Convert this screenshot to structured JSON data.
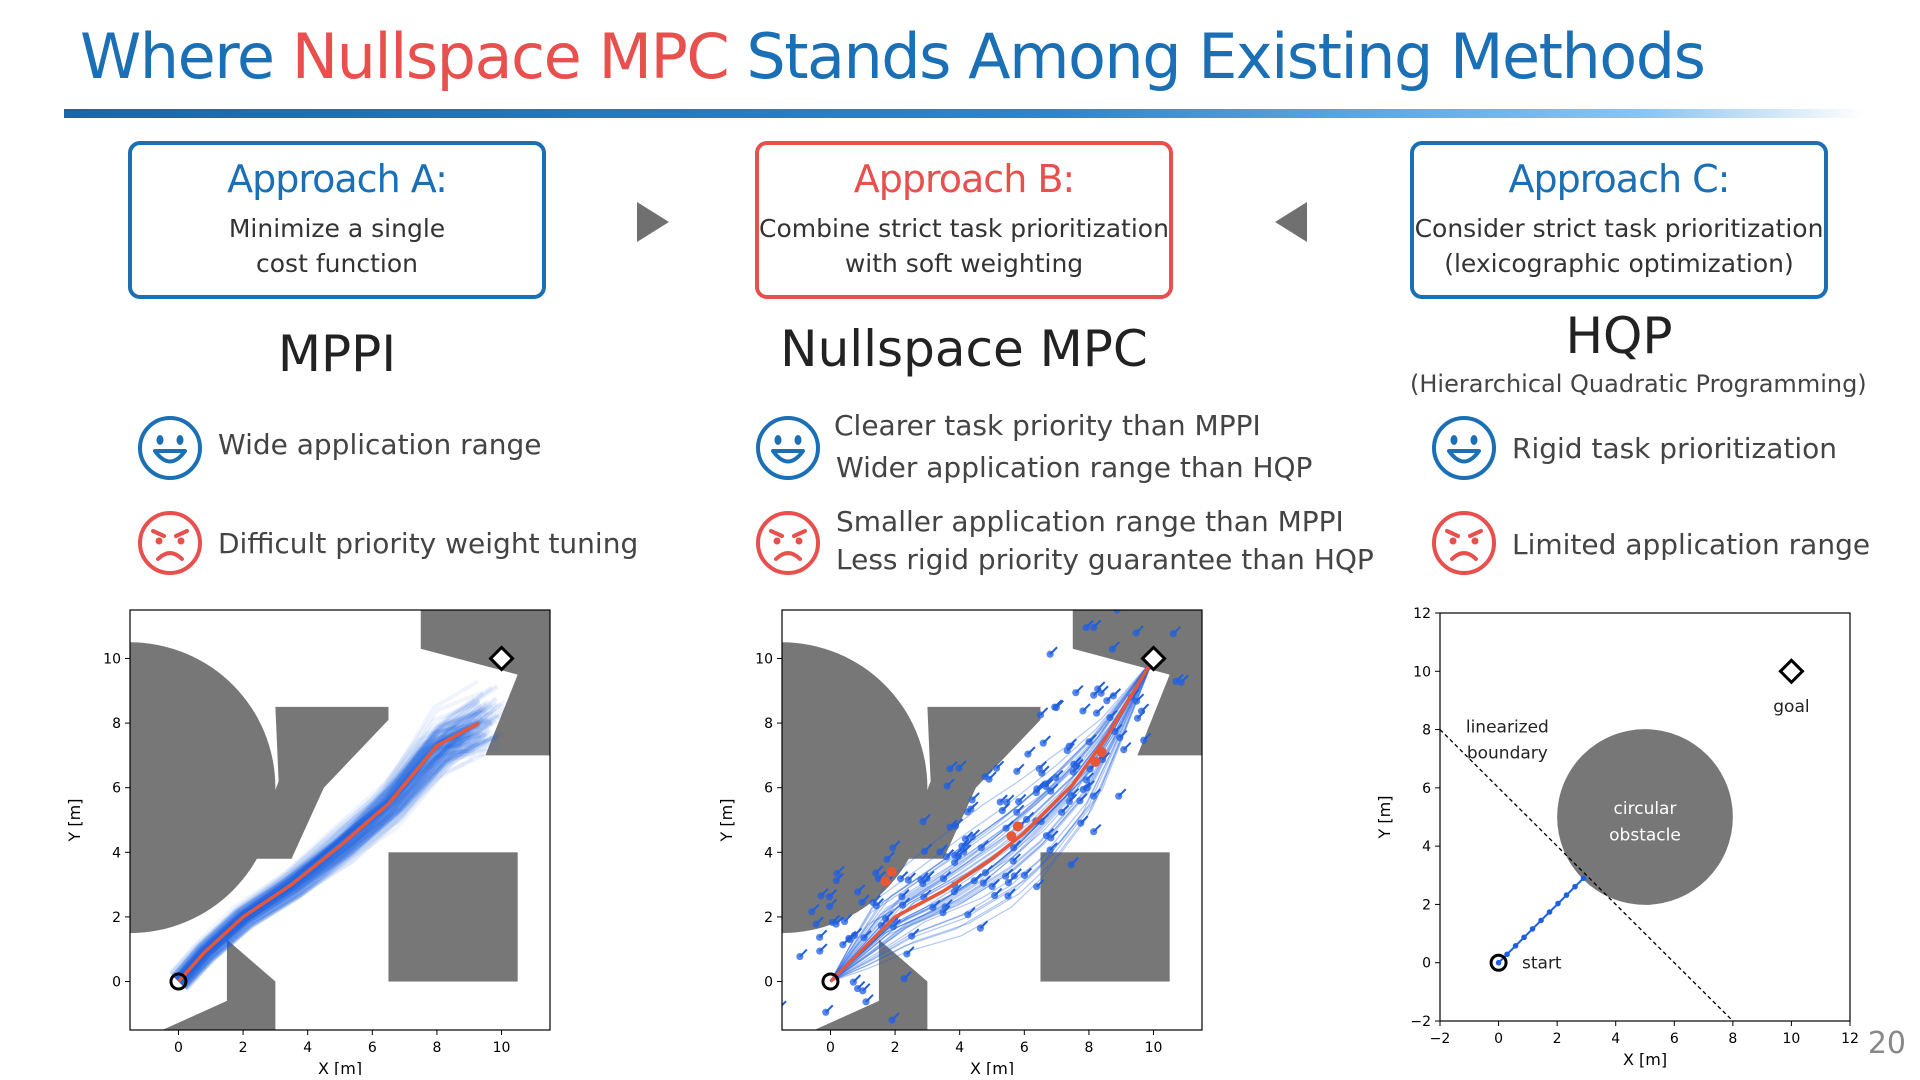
{
  "header": {
    "title_pre": "Where ",
    "title_highlight": "Nullspace MPC",
    "title_post": " Stands Among Existing Methods"
  },
  "colors": {
    "blue": "#1a6fb5",
    "red": "#e8504e",
    "obstacle": "#777777",
    "traj_blue": "#1f5fe0",
    "traj_red": "#e8563a"
  },
  "approaches": [
    {
      "heading": "Approach A:",
      "line1": "Minimize a single",
      "line2": "cost function",
      "method": "MPPI",
      "method_sub": "",
      "pros": [
        "Wide application range"
      ],
      "cons": [
        "Difficult priority weight tuning"
      ]
    },
    {
      "heading": "Approach B:",
      "line1": "Combine strict task prioritization",
      "line2": "with soft weighting",
      "method": "Nullspace MPC",
      "method_sub": "",
      "pros": [
        "Clearer task priority than MPPI",
        "Wider application range than HQP"
      ],
      "cons": [
        "Smaller application range than MPPI",
        "Less rigid priority guarantee than HQP"
      ]
    },
    {
      "heading": "Approach C:",
      "line1": "Consider strict task prioritization",
      "line2": "(lexicographic optimization)",
      "method": "HQP",
      "method_sub": "(Hierarchical Quadratic Programming)",
      "pros": [
        "Rigid task prioritization"
      ],
      "cons": [
        "Limited application range"
      ]
    }
  ],
  "icons": {
    "arrow_right": "arrow-right-icon",
    "arrow_left": "arrow-left-icon",
    "happy": "happy-face-icon",
    "sad": "sad-face-icon"
  },
  "plots": {
    "mppi": {
      "xlabel": "X [m]",
      "ylabel": "Y [m]",
      "xticks": [
        "0",
        "2",
        "4",
        "6",
        "8",
        "10"
      ],
      "yticks": [
        "0",
        "2",
        "4",
        "6",
        "8",
        "10"
      ],
      "start": [
        0,
        0
      ],
      "goal": [
        10,
        10
      ]
    },
    "nullspace": {
      "xlabel": "X [m]",
      "ylabel": "Y [m]",
      "xticks": [
        "0",
        "2",
        "4",
        "6",
        "8",
        "10"
      ],
      "yticks": [
        "0",
        "2",
        "4",
        "6",
        "8",
        "10"
      ],
      "start": [
        0,
        0
      ],
      "goal": [
        10,
        10
      ]
    },
    "hqp": {
      "xlabel": "X [m]",
      "ylabel": "Y [m]",
      "xticks": [
        "−2",
        "0",
        "2",
        "4",
        "6",
        "8",
        "10",
        "12"
      ],
      "yticks": [
        "−2",
        "0",
        "2",
        "4",
        "6",
        "8",
        "10",
        "12"
      ],
      "boundary_label_1": "linearized",
      "boundary_label_2": "boundary",
      "obstacle_label_1": "circular",
      "obstacle_label_2": "obstacle",
      "start_label": "start",
      "goal_label": "goal",
      "start": [
        0,
        0
      ],
      "goal": [
        10,
        10
      ]
    }
  },
  "page_number": "20"
}
